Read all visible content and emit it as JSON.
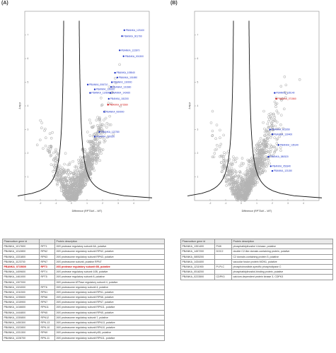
{
  "panel_a": {
    "letter": "(A)",
    "table": {
      "headers": [
        "Plasmodium gene id",
        "",
        "Protein description"
      ],
      "rows": [
        [
          "PBANKA_1017600",
          "RPT1",
          "26S protease regulatory subunit 6A, putative"
        ],
        [
          "PBANKA_1312800",
          "RPN2",
          "26S proteasome regulatory subunit RPN2, putative"
        ],
        [
          "PBANKA_1331800",
          "RPN3",
          "26S proteasome regulatory subunit RPN3, putative"
        ],
        [
          "PBANKA_1123700",
          "RPN7",
          "26S proteasome subunit, putative RPN7"
        ],
        [
          "PBANKA_0715600",
          "RPT3",
          "26S protease regulatory subunit 6B, putative"
        ],
        [
          "PBANKA_1409600",
          "RPT4",
          "26S protease regulatory subunit 10B, putative"
        ],
        [
          "PBANKA_1461000",
          "RPT5",
          "26S protease regulatory subunit 8, putative"
        ],
        [
          "PBANKA_1307000",
          "",
          "26S proteasome ATPase regulatory subunit 4, putative"
        ],
        [
          "PBANKA_1324000",
          "RPT6",
          "26S proteasome regulatory subunit 4, putative"
        ],
        [
          "PBANKA_1311500",
          "RPN1",
          "26S proteasome regulatory subunit RPN1, putative"
        ],
        [
          "PBANKA_1235600",
          "RPN6",
          "26S proteasome regulatory subunit RPN6, putative"
        ],
        [
          "PBANKA_1315900",
          "RPN7",
          "26S proteasome regulatory subunit RPN7, putative"
        ],
        [
          "PBANKA_1416600",
          "RPN11",
          "26S proteasome regulatory subunit RPN11, putative"
        ],
        [
          "PBANKA_1444800",
          "RPN5",
          "26S proteasome regulatory subunit RPN5, putative"
        ],
        [
          "PBANKA_1330800",
          "RPN12",
          "26S proteasome regulatory subunit 7, putative"
        ],
        [
          "PBANKA_1450300",
          "RPN-13",
          "26S proteasome regulatory subunit RPN13, putative"
        ],
        [
          "PBANKA_1322800",
          "RPN-10",
          "26S proteasome regulatory subunit RPN10, putative"
        ],
        [
          "PBANKA_1331300",
          "RPN9",
          "26S proteasome regulatory subunit p55, putative"
        ],
        [
          "PBANKA_1228700",
          "RPN-11",
          "26S proteasome regulatory subunit RPN11, putative"
        ]
      ],
      "highlight_row": 4,
      "highlight_color": "#d21414"
    }
  },
  "panel_b": {
    "letter": "(B)",
    "table": {
      "headers": [
        "Plasmodium gene id",
        "",
        "Protein description"
      ],
      "rows": [
        [
          "PBANKA_1351400",
          "PI4K",
          "phosphatidylinositol 4-kinase, putative"
        ],
        [
          "PBANKA_1457200",
          "DOC2",
          "double C2-like domain-containing protein, putative"
        ],
        [
          "PBANKA_0805200",
          "",
          "C2 domain-containing protein 5, putative"
        ],
        [
          "PBANKA_1434400",
          "",
          "vacuolar fusion protein MON1, putative"
        ],
        [
          "PBANKA_1211900",
          "PI-PLC",
          "phosphoinositide-specific phospholipase C"
        ],
        [
          "PBANKA_0518200",
          "",
          "phosphatidylinositol-binding protein, putative"
        ],
        [
          "PBANKA_0223500",
          "CDPK3",
          "calcium-dependent protein kinase 3, CDPK3"
        ]
      ]
    }
  },
  "chart_data": [
    {
      "type": "scatter",
      "title": "",
      "xlabel": "Difference (RPT3cK – WT)",
      "ylabel": "-Log p",
      "xlim": [
        -3,
        5
      ],
      "ylim": [
        0,
        8
      ],
      "grid": false,
      "background_points_color": "#b4b4b4",
      "highlight_color": "#1f35c8",
      "special_color": "#d21414",
      "labeled_points": [
        {
          "label": "PBANKA_123100",
          "x": 3.4,
          "y": 7.2
        },
        {
          "label": "PBANKA_001790",
          "x": 3.25,
          "y": 6.95
        },
        {
          "label": "PBANKA_122870",
          "x": 3.1,
          "y": 6.35
        },
        {
          "label": "PBANKA_001300",
          "x": 3.35,
          "y": 6.1
        },
        {
          "label": "PBANKA_105540",
          "x": 2.8,
          "y": 5.4
        },
        {
          "label": "PBANKA_101690",
          "x": 2.95,
          "y": 5.2
        },
        {
          "label": "PBANKA_130900",
          "x": 2.6,
          "y": 5.0
        },
        {
          "label": "PBANKA_006710",
          "x": 1.05,
          "y": 4.9
        },
        {
          "label": "PBANKA_131660",
          "x": 2.55,
          "y": 4.8
        },
        {
          "label": "PBANKA_136910",
          "x": 1.5,
          "y": 4.7
        },
        {
          "label": "PBANKA_110800",
          "x": 1.2,
          "y": 4.55
        },
        {
          "label": "PBANKA_143420",
          "x": 2.5,
          "y": 4.55
        },
        {
          "label": "PBANKA_181200",
          "x": 2.4,
          "y": 4.3
        },
        {
          "label": "PBANKA_071560",
          "x": 2.35,
          "y": 4.05,
          "special": true
        },
        {
          "label": "PBANKA_060900",
          "x": 2.1,
          "y": 3.75
        },
        {
          "label": "PBANKA_122780",
          "x": 1.8,
          "y": 2.9
        },
        {
          "label": "PBANKA_130250",
          "x": 1.5,
          "y": 2.7
        }
      ]
    },
    {
      "type": "scatter",
      "title": "",
      "xlabel": "Difference (RPT3cK – WT)",
      "ylabel": "-Log p",
      "xlim": [
        -3,
        5
      ],
      "ylim": [
        0,
        8
      ],
      "grid": false,
      "background_points_color": "#b4b4b4",
      "highlight_color": "#1f35c8",
      "special_color": "#d21414",
      "labeled_points": [
        {
          "label": "PBANKA_135140",
          "x": 2.15,
          "y": 4.55
        },
        {
          "label": "PBANKA_071560",
          "x": 2.25,
          "y": 4.3,
          "special": true
        },
        {
          "label": "PBANKA_021950",
          "x": 1.85,
          "y": 3.0
        },
        {
          "label": "PBANKA_130400",
          "x": 2.0,
          "y": 2.8
        },
        {
          "label": "PBANKA_135140",
          "x": 2.4,
          "y": 2.35
        },
        {
          "label": "PBANKA_080520",
          "x": 1.75,
          "y": 1.85
        },
        {
          "label": "PBANKA_051840",
          "x": 1.9,
          "y": 1.45
        },
        {
          "label": "PBANKA_121150",
          "x": 2.0,
          "y": 1.25
        }
      ]
    }
  ]
}
